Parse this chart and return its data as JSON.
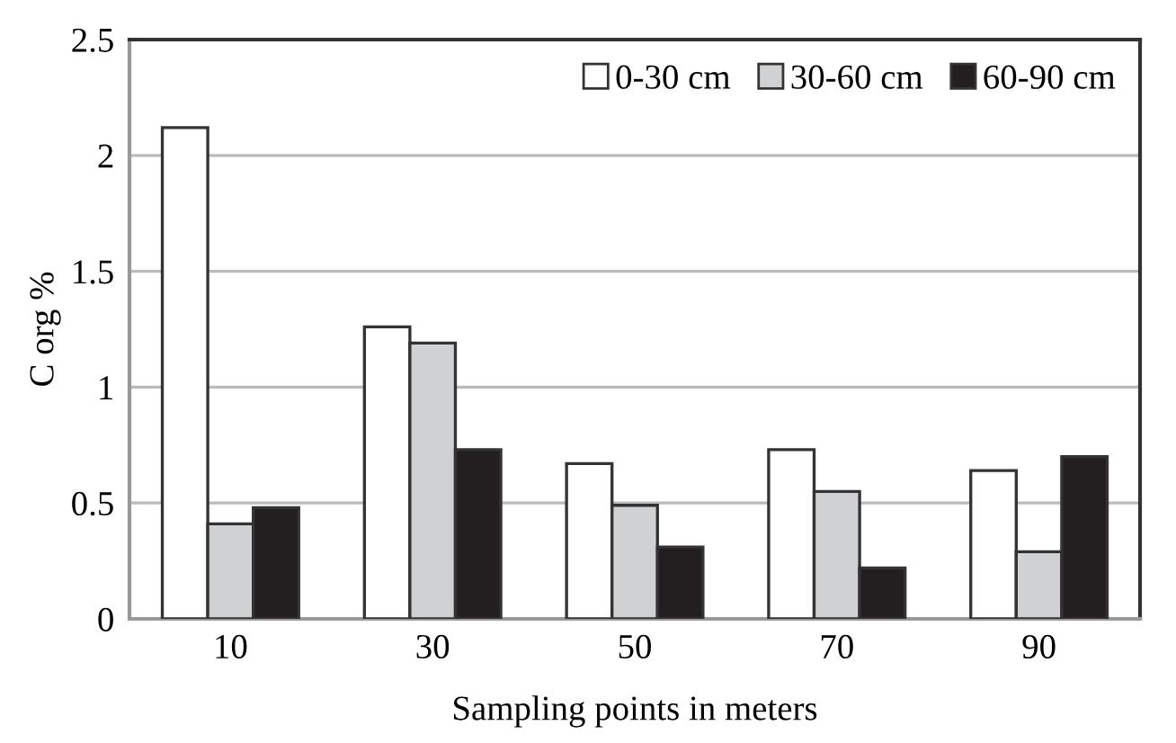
{
  "chart_data": {
    "type": "bar",
    "xlabel": "Sampling points in meters",
    "ylabel": "C org %",
    "categories": [
      "10",
      "30",
      "50",
      "70",
      "90"
    ],
    "series": [
      {
        "name": "0-30 cm",
        "color": "#ffffff",
        "values": [
          2.12,
          1.26,
          0.67,
          0.73,
          0.64
        ]
      },
      {
        "name": "30-60 cm",
        "color": "#d0d1d3",
        "values": [
          0.41,
          1.19,
          0.49,
          0.55,
          0.29
        ]
      },
      {
        "name": "60-90 cm",
        "color": "#231f20",
        "values": [
          0.48,
          0.73,
          0.31,
          0.22,
          0.7
        ]
      }
    ],
    "ylim": [
      0,
      2.5
    ],
    "yticks": [
      0,
      0.5,
      1,
      1.5,
      2,
      2.5
    ],
    "grid": "y",
    "legend": "top right"
  }
}
